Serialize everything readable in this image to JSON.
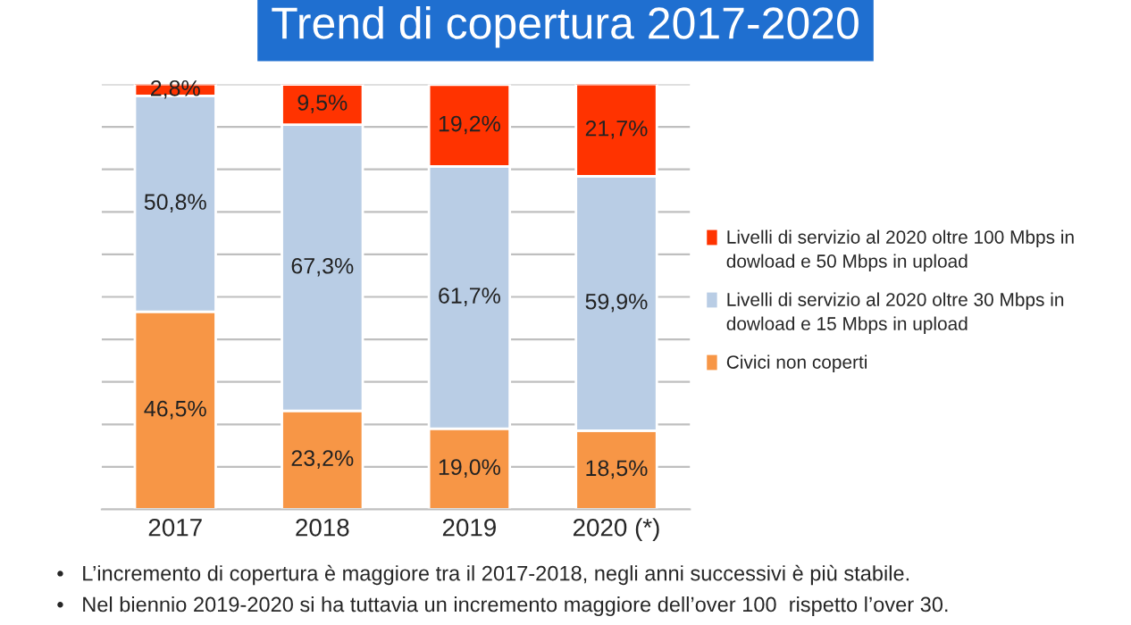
{
  "chart_data": {
    "type": "bar",
    "title": "Trend di copertura 2017-2020",
    "stacked": true,
    "categories": [
      "2017",
      "2018",
      "2019",
      "2020 (*)"
    ],
    "series": [
      {
        "name": "Civici non coperti",
        "color": "#f79646",
        "values": [
          46.5,
          23.2,
          19.0,
          18.5
        ],
        "value_labels": [
          "46,5%",
          "23,2%",
          "19,0%",
          "18,5%"
        ]
      },
      {
        "name": "Livelli di servizio al 2020 oltre 30 Mbps in dowload e 15 Mbps in upload",
        "color": "#b9cde5",
        "values": [
          50.8,
          67.3,
          61.7,
          59.9
        ],
        "value_labels": [
          "50,8%",
          "67,3%",
          "61,7%",
          "59,9%"
        ]
      },
      {
        "name": "Livelli di servizio al 2020 oltre 100 Mbps in dowload e 50 Mbps in upload",
        "color": "#ff3300",
        "values": [
          2.8,
          9.5,
          19.2,
          21.7
        ],
        "value_labels": [
          "2,8%",
          "9,5%",
          "19,2%",
          "21,7%"
        ]
      }
    ],
    "ylim": [
      0,
      100
    ],
    "yticks": [
      {
        "value": 0,
        "label": null
      },
      {
        "value": 10,
        "label": null
      },
      {
        "value": 20,
        "label": null
      },
      {
        "value": 30,
        "label": null
      },
      {
        "value": 40,
        "label": null
      },
      {
        "value": 50,
        "label": null
      },
      {
        "value": 60,
        "label": null
      },
      {
        "value": 70,
        "label": null
      },
      {
        "value": 80,
        "label": null
      },
      {
        "value": 90,
        "label": null
      },
      {
        "value": 100,
        "label": null
      }
    ],
    "grid": "y",
    "legend": "right",
    "tick_labels": "x",
    "annotations": [
      "•   L’incremento di copertura è maggiore tra il 2017-2018, negli anni successivi è più stabile.",
      "•   Nel biennio 2019-2020 si ha tuttavia un incremento maggiore dell’over 100  rispetto l’over 30."
    ]
  }
}
